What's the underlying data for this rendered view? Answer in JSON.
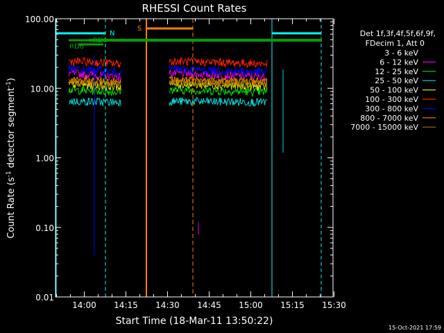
{
  "chart_data": {
    "type": "line",
    "title": "RHESSI Count Rates",
    "xlabel": "Start Time (18-Mar-11 13:50:22)",
    "ylabel_parts": [
      "Count Rate (s",
      "-1",
      " detector segment",
      "-1",
      ")"
    ],
    "yscale": "log",
    "ylim": [
      0.01,
      100.0
    ],
    "xlim_minutes": [
      -0.37,
      99.63
    ],
    "x_ticks": [
      {
        "label": "14:00",
        "m": 10
      },
      {
        "label": "14:15",
        "m": 25
      },
      {
        "label": "14:30",
        "m": 40
      },
      {
        "label": "14:45",
        "m": 55
      },
      {
        "label": "15:00",
        "m": 70
      },
      {
        "label": "15:15",
        "m": 85
      },
      {
        "label": "15:30",
        "m": 100
      }
    ],
    "y_ticks": [
      {
        "label": "0.01",
        "v": 0.01
      },
      {
        "label": "0.10",
        "v": 0.1
      },
      {
        "label": "1.00",
        "v": 1
      },
      {
        "label": "10.00",
        "v": 10
      },
      {
        "label": "100.00",
        "v": 100
      }
    ],
    "legend_header": [
      "Det 1f,3f,4f,5f,6f,9f,",
      "FDecim 1, Att 0"
    ],
    "series": [
      {
        "name": "3 - 6 keV",
        "color": "#000000",
        "level": [
          8.0,
          9.2
        ]
      },
      {
        "name": "6 - 12 keV",
        "color": "#e000e0",
        "level": [
          14.5,
          16.5
        ]
      },
      {
        "name": "12 - 25 keV",
        "color": "#00e000",
        "level": [
          8.8,
          9.5
        ]
      },
      {
        "name": "25 - 50 keV",
        "color": "#00e0e0",
        "level": [
          6.3,
          6.5
        ]
      },
      {
        "name": "50 - 100 keV",
        "color": "#e0e000",
        "level": [
          10.5,
          11.5
        ]
      },
      {
        "name": "100 - 300 keV",
        "color": "#ff2000",
        "level": [
          22.5,
          24.5
        ]
      },
      {
        "name": "300 - 800 keV",
        "color": "#0000ff",
        "level": [
          17.0,
          19.0
        ]
      },
      {
        "name": "800 - 7000 keV",
        "color": "#ff8000",
        "level": [
          12.5,
          13.0
        ]
      },
      {
        "name": "7000 - 15000 keV",
        "color": "#a07800",
        "level": [
          12.0,
          12.5
        ]
      }
    ],
    "data_segments_minutes": [
      [
        4.45,
        23.2
      ],
      [
        40.6,
        75.9
      ]
    ],
    "annotations": {
      "flags": [
        {
          "label": "N",
          "color": "#00ffff"
        },
        {
          "label": "S",
          "color": "#ff8000"
        },
        {
          "label": "RD6",
          "color": "#00a000"
        },
        {
          "label": "RD6",
          "color": "#00a000"
        }
      ]
    },
    "timestamp": "15-Oct-2021 17:59"
  }
}
